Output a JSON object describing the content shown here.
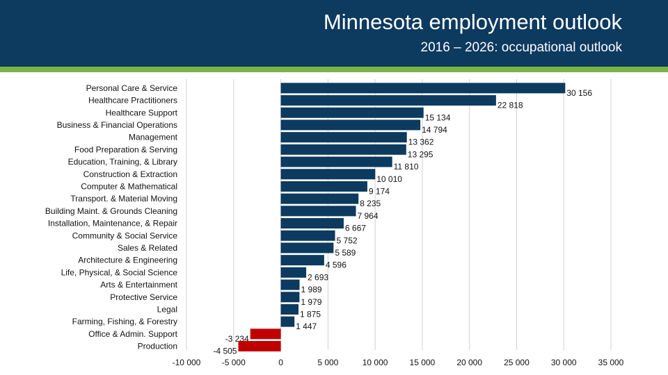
{
  "header": {
    "title": "Minnesota employment outlook",
    "subtitle": "2016 – 2026: occupational outlook"
  },
  "colors": {
    "positive": "#0d3a5f",
    "negative": "#c00000",
    "header": "#0d3a5f",
    "accent": "#7cb342"
  },
  "chart_data": {
    "type": "bar",
    "orientation": "horizontal",
    "title": "Minnesota employment outlook",
    "subtitle": "2016 – 2026: occupational outlook",
    "categories": [
      "Personal Care & Service",
      "Healthcare Practitioners",
      "Healthcare Support",
      "Business & Financial Operations",
      "Management",
      "Food Preparation & Serving",
      "Education, Training, & Library",
      "Construction & Extraction",
      "Computer & Mathematical",
      "Transport. & Material Moving",
      "Building Maint. & Grounds Cleaning",
      "Installation, Maintenance, & Repair",
      "Community & Social Service",
      "Sales & Related",
      "Architecture & Engineering",
      "Life, Physical, & Social Science",
      "Arts & Entertainment",
      "Protective Service",
      "Legal",
      "Farming, Fishing, & Forestry",
      "Office & Admin. Support",
      "Production"
    ],
    "values": [
      30156,
      22818,
      15134,
      14794,
      13362,
      13295,
      11810,
      10010,
      9174,
      8235,
      7964,
      6667,
      5752,
      5589,
      4596,
      2693,
      1989,
      1979,
      1875,
      1447,
      -3234,
      -4505
    ],
    "value_labels": [
      "30 156",
      "22 818",
      "15 134",
      "14 794",
      "13 362",
      "13 295",
      "11 810",
      "10 010",
      "9 174",
      "8 235",
      "7 964",
      "6 667",
      "5 752",
      "5 589",
      "4 596",
      "2 693",
      "1 989",
      "1 979",
      "1 875",
      "1 447",
      "-3 234",
      "-4 505"
    ],
    "xlim": [
      -10000,
      35000
    ],
    "ticks": [
      -10000,
      -5000,
      0,
      5000,
      10000,
      15000,
      20000,
      25000,
      30000,
      35000
    ],
    "tick_labels": [
      "-10 000",
      "-5 000",
      "0",
      "5 000",
      "10 000",
      "15 000",
      "20 000",
      "25 000",
      "30 000",
      "35 000"
    ],
    "grid": true,
    "legend": "none"
  }
}
